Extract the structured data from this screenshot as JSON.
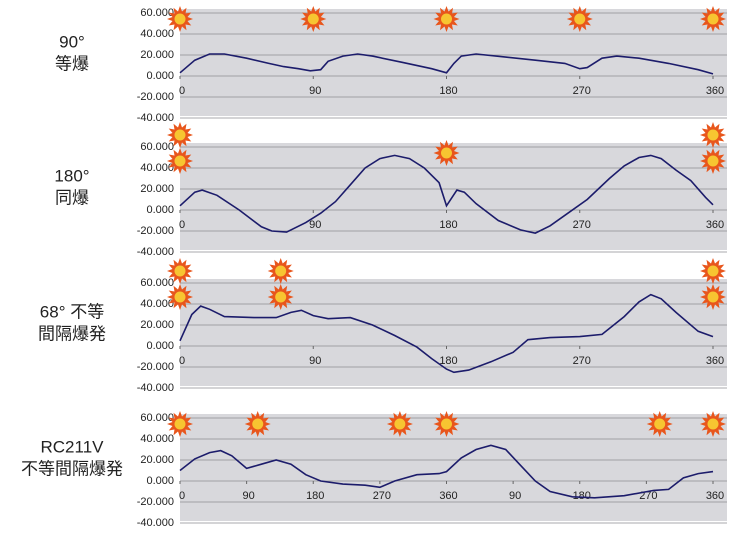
{
  "chart_data": [
    {
      "type": "line",
      "label": [
        "90°",
        "等爆"
      ],
      "color": "#1c1c6b",
      "xlim": [
        0,
        360
      ],
      "xticks": [
        0,
        90,
        180,
        270,
        360
      ],
      "ylim": [
        -40,
        60
      ],
      "yticks": [
        {
          "value": 60,
          "label": "60.000"
        },
        {
          "value": 40,
          "label": "40.000"
        },
        {
          "value": 20,
          "label": "20.000"
        },
        {
          "value": 0,
          "label": "0.000"
        },
        {
          "value": -20,
          "label": "-20.000"
        },
        {
          "value": -40,
          "label": "-40.000"
        }
      ],
      "firing": [
        0,
        90,
        180,
        270,
        360
      ],
      "x": [
        0,
        10,
        20,
        30,
        45,
        60,
        70,
        80,
        88,
        95,
        100,
        110,
        120,
        130,
        150,
        170,
        180,
        185,
        190,
        200,
        220,
        240,
        260,
        270,
        275,
        285,
        295,
        310,
        330,
        350,
        360
      ],
      "values": [
        3,
        15,
        21,
        21,
        17,
        12,
        9,
        7,
        5,
        6,
        14,
        19,
        21,
        19,
        13,
        7,
        3,
        12,
        19,
        21,
        18,
        15,
        12,
        7,
        8,
        17,
        19,
        17,
        12,
        6,
        2
      ]
    },
    {
      "type": "line",
      "label": [
        "180°",
        "同爆"
      ],
      "color": "#1c1c6b",
      "xlim": [
        0,
        360
      ],
      "xticks": [
        0,
        90,
        180,
        270,
        360
      ],
      "ylim": [
        -40,
        60
      ],
      "yticks": [
        {
          "value": 60,
          "label": "60.000"
        },
        {
          "value": 40,
          "label": "40.000"
        },
        {
          "value": 20,
          "label": "20.000"
        },
        {
          "value": 0,
          "label": "0.000"
        },
        {
          "value": -20,
          "label": "-20.000"
        },
        {
          "value": -40,
          "label": "-40.000"
        }
      ],
      "firing": [
        0,
        0,
        180,
        360,
        360
      ],
      "x": [
        0,
        10,
        15,
        25,
        40,
        55,
        62,
        72,
        85,
        95,
        105,
        115,
        125,
        135,
        145,
        155,
        165,
        175,
        180,
        187,
        192,
        200,
        215,
        230,
        240,
        250,
        262,
        275,
        290,
        300,
        310,
        318,
        325,
        335,
        345,
        355,
        360
      ],
      "values": [
        4,
        17,
        19,
        14,
        0,
        -16,
        -20,
        -21,
        -12,
        -3,
        8,
        24,
        40,
        49,
        52,
        49,
        40,
        26,
        4,
        19,
        17,
        6,
        -10,
        -19,
        -22,
        -15,
        -3,
        10,
        30,
        42,
        50,
        52,
        49,
        38,
        28,
        12,
        5
      ]
    },
    {
      "type": "line",
      "label": [
        "68°  不等",
        "間隔爆発"
      ],
      "color": "#1c1c6b",
      "xlim": [
        0,
        360
      ],
      "xticks": [
        0,
        90,
        180,
        270,
        360
      ],
      "ylim": [
        -40,
        60
      ],
      "yticks": [
        {
          "value": 60,
          "label": "60.000"
        },
        {
          "value": 40,
          "label": "40.000"
        },
        {
          "value": 20,
          "label": "20.000"
        },
        {
          "value": 0,
          "label": "0.000"
        },
        {
          "value": -20,
          "label": "-20.000"
        },
        {
          "value": -40,
          "label": "-40.000"
        }
      ],
      "firing": [
        0,
        0,
        68,
        68,
        360,
        360
      ],
      "x": [
        0,
        8,
        14,
        20,
        30,
        50,
        65,
        75,
        82,
        90,
        100,
        115,
        130,
        145,
        160,
        170,
        180,
        185,
        195,
        210,
        225,
        235,
        250,
        270,
        285,
        300,
        310,
        318,
        325,
        335,
        350,
        360
      ],
      "values": [
        5,
        30,
        38,
        35,
        28,
        27,
        27,
        32,
        34,
        29,
        26,
        27,
        20,
        10,
        -1,
        -12,
        -22,
        -25,
        -23,
        -15,
        -6,
        6,
        8,
        9,
        11,
        28,
        42,
        49,
        45,
        32,
        14,
        9
      ]
    },
    {
      "type": "line",
      "label": [
        "RC211V",
        "不等間隔爆発"
      ],
      "color": "#1c1c6b",
      "xlim": [
        0,
        720
      ],
      "xticks": [
        0,
        90,
        180,
        270,
        360,
        {
          "value": 450,
          "label": "90"
        },
        {
          "value": 540,
          "label": "180"
        },
        {
          "value": 630,
          "label": "270"
        },
        {
          "value": 720,
          "label": "360"
        }
      ],
      "ylim": [
        -40,
        60
      ],
      "yticks": [
        {
          "value": 60,
          "label": "60.000"
        },
        {
          "value": 40,
          "label": "40.000"
        },
        {
          "value": 20,
          "label": "20.000"
        },
        {
          "value": 0,
          "label": "0.000"
        },
        {
          "value": -20,
          "label": "-20.000"
        },
        {
          "value": -40,
          "label": "-40.000"
        }
      ],
      "firing": [
        0,
        105,
        297,
        360,
        648,
        720
      ],
      "x": [
        0,
        20,
        40,
        55,
        70,
        90,
        110,
        130,
        150,
        170,
        190,
        220,
        250,
        270,
        290,
        320,
        350,
        360,
        380,
        400,
        420,
        440,
        460,
        480,
        500,
        530,
        560,
        600,
        640,
        660,
        680,
        700,
        720
      ],
      "values": [
        10,
        21,
        27,
        29,
        24,
        12,
        16,
        20,
        16,
        6,
        0,
        -3,
        -4,
        -6,
        0,
        6,
        7,
        9,
        22,
        30,
        34,
        30,
        15,
        0,
        -10,
        -15,
        -16,
        -14,
        -9,
        -8,
        3,
        7,
        9
      ]
    }
  ]
}
